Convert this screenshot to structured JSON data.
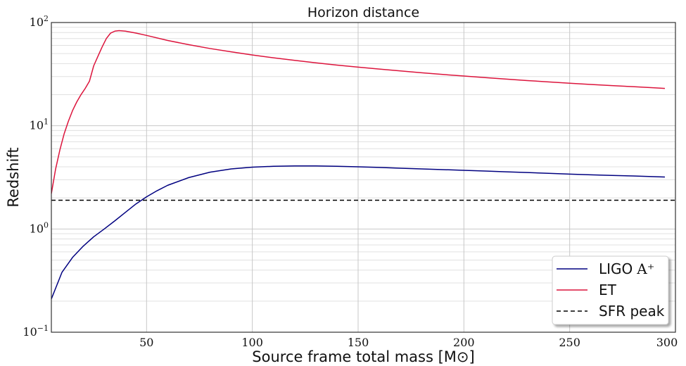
{
  "chart_data": {
    "type": "line",
    "title": "Horizon distance",
    "xlabel": "Source frame total mass [M⊙]",
    "ylabel": "Redshift",
    "xlim": [
      5,
      300
    ],
    "ylim": [
      0.1,
      100
    ],
    "yscale": "log",
    "grid": true,
    "legend_position": "bottom-right",
    "xticks": [
      {
        "value": 50,
        "label": "50"
      },
      {
        "value": 100,
        "label": "100"
      },
      {
        "value": 150,
        "label": "150"
      },
      {
        "value": 200,
        "label": "200"
      },
      {
        "value": 250,
        "label": "250"
      },
      {
        "value": 300,
        "label": "300"
      }
    ],
    "yticks": [
      {
        "value": 0.1,
        "base": "10",
        "exp": "−1"
      },
      {
        "value": 1,
        "base": "10",
        "exp": "0"
      },
      {
        "value": 10,
        "base": "10",
        "exp": "1"
      },
      {
        "value": 100,
        "base": "10",
        "exp": "2"
      }
    ],
    "series": [
      {
        "name": "LIGO A⁺",
        "color": "#000080",
        "style": "solid",
        "points": [
          [
            5,
            0.21
          ],
          [
            10,
            0.38
          ],
          [
            15,
            0.53
          ],
          [
            20,
            0.68
          ],
          [
            25,
            0.84
          ],
          [
            30,
            1.0
          ],
          [
            35,
            1.2
          ],
          [
            40,
            1.45
          ],
          [
            45,
            1.75
          ],
          [
            50,
            2.05
          ],
          [
            55,
            2.35
          ],
          [
            60,
            2.65
          ],
          [
            70,
            3.15
          ],
          [
            80,
            3.55
          ],
          [
            90,
            3.82
          ],
          [
            100,
            3.97
          ],
          [
            110,
            4.05
          ],
          [
            120,
            4.08
          ],
          [
            130,
            4.08
          ],
          [
            140,
            4.05
          ],
          [
            150,
            4.0
          ],
          [
            160,
            3.95
          ],
          [
            170,
            3.88
          ],
          [
            180,
            3.82
          ],
          [
            190,
            3.76
          ],
          [
            200,
            3.7
          ],
          [
            210,
            3.64
          ],
          [
            220,
            3.58
          ],
          [
            230,
            3.52
          ],
          [
            240,
            3.46
          ],
          [
            250,
            3.4
          ],
          [
            260,
            3.35
          ],
          [
            270,
            3.3
          ],
          [
            280,
            3.26
          ],
          [
            290,
            3.21
          ],
          [
            295,
            3.19
          ]
        ]
      },
      {
        "name": "ET",
        "color": "#dc143c",
        "style": "solid",
        "points": [
          [
            5,
            2.2
          ],
          [
            7,
            3.8
          ],
          [
            9,
            5.8
          ],
          [
            11,
            8.3
          ],
          [
            13,
            11
          ],
          [
            15,
            14
          ],
          [
            17,
            17
          ],
          [
            19,
            20
          ],
          [
            21,
            23
          ],
          [
            23,
            27
          ],
          [
            25,
            38
          ],
          [
            27,
            47
          ],
          [
            29,
            58
          ],
          [
            31,
            70
          ],
          [
            33,
            79
          ],
          [
            35,
            82.5
          ],
          [
            37,
            83.5
          ],
          [
            40,
            82.5
          ],
          [
            45,
            79
          ],
          [
            50,
            75
          ],
          [
            60,
            67
          ],
          [
            70,
            61
          ],
          [
            80,
            56
          ],
          [
            90,
            52
          ],
          [
            100,
            48.5
          ],
          [
            110,
            45.5
          ],
          [
            120,
            43
          ],
          [
            130,
            40.7
          ],
          [
            140,
            38.7
          ],
          [
            150,
            37
          ],
          [
            160,
            35.4
          ],
          [
            170,
            34
          ],
          [
            180,
            32.6
          ],
          [
            190,
            31.4
          ],
          [
            200,
            30.3
          ],
          [
            210,
            29.3
          ],
          [
            220,
            28.3
          ],
          [
            230,
            27.4
          ],
          [
            240,
            26.6
          ],
          [
            250,
            25.8
          ],
          [
            260,
            25.1
          ],
          [
            270,
            24.5
          ],
          [
            280,
            23.9
          ],
          [
            290,
            23.3
          ],
          [
            295,
            23.0
          ]
        ]
      },
      {
        "name": "SFR peak",
        "color": "#000000",
        "style": "dashed",
        "points": [
          [
            5,
            1.9
          ],
          [
            300,
            1.9
          ]
        ]
      }
    ],
    "legend": [
      {
        "label": "LIGO",
        "math": "A⁺"
      },
      {
        "label": "ET",
        "math": ""
      },
      {
        "label": "SFR peak",
        "math": ""
      }
    ]
  }
}
